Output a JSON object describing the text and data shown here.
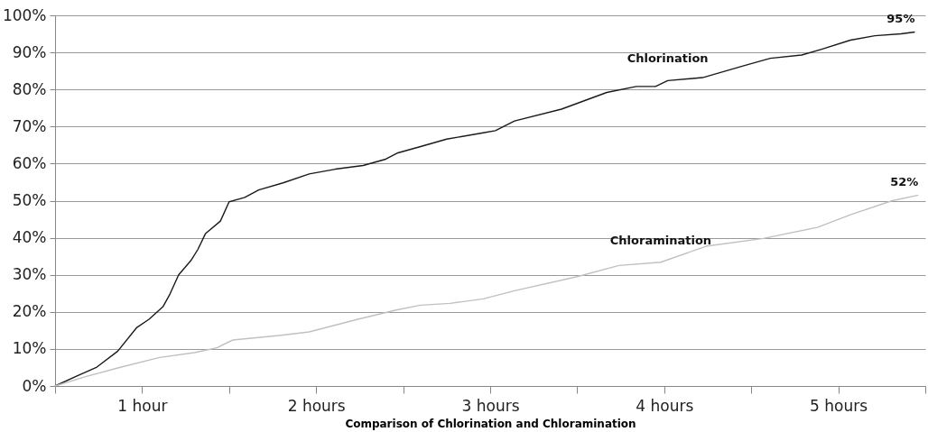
{
  "chart_data": {
    "type": "line",
    "xlabel": "Comparison of Chlorination and Chloramination",
    "xlim": [
      0,
      5
    ],
    "xticks": [
      {
        "value": 0,
        "label": null
      },
      {
        "value": 0.5,
        "label": "1 hour"
      },
      {
        "value": 1,
        "label": null
      },
      {
        "value": 1.5,
        "label": "2 hours"
      },
      {
        "value": 2,
        "label": null
      },
      {
        "value": 2.5,
        "label": "3 hours"
      },
      {
        "value": 3,
        "label": null
      },
      {
        "value": 3.5,
        "label": "4 hours"
      },
      {
        "value": 4,
        "label": null
      },
      {
        "value": 4.5,
        "label": "5 hours"
      },
      {
        "value": 5,
        "label": null
      }
    ],
    "ylim": [
      0,
      100
    ],
    "yticks": [
      {
        "value": 0,
        "label": "0%"
      },
      {
        "value": 10,
        "label": "10%"
      },
      {
        "value": 20,
        "label": "20%"
      },
      {
        "value": 30,
        "label": "30%"
      },
      {
        "value": 40,
        "label": "40%"
      },
      {
        "value": 50,
        "label": "50%"
      },
      {
        "value": 60,
        "label": "60%"
      },
      {
        "value": 70,
        "label": "70%"
      },
      {
        "value": 80,
        "label": "80%"
      },
      {
        "value": 90,
        "label": "90%"
      },
      {
        "value": 100,
        "label": "100%"
      }
    ],
    "grid": "y",
    "legend": false,
    "marker": "none",
    "line_style": "solid",
    "series": [
      {
        "name": "Chlorination",
        "color": "#1a1a1a",
        "x": [
          0,
          0.12,
          0.24,
          0.36,
          0.47,
          0.54,
          0.62,
          0.66,
          0.71,
          0.78,
          0.82,
          0.864,
          0.95,
          1.0,
          1.09,
          1.17,
          1.31,
          1.46,
          1.61,
          1.77,
          1.9,
          1.97,
          2.1,
          2.25,
          2.46,
          2.53,
          2.64,
          2.91,
          3.17,
          3.34,
          3.45,
          3.52,
          3.72,
          3.98,
          4.11,
          4.29,
          4.4,
          4.57,
          4.71,
          4.86,
          4.94
        ],
        "values": [
          0,
          2.6,
          5.1,
          9.4,
          15.8,
          18,
          21.4,
          24.8,
          30,
          33.8,
          36.8,
          41.1,
          44.5,
          49.7,
          50.9,
          52.9,
          54.8,
          57.2,
          58.5,
          59.5,
          61.2,
          62.9,
          64.6,
          66.6,
          68.3,
          68.9,
          71.5,
          74.7,
          79.2,
          80.8,
          80.8,
          82.4,
          83.2,
          86.7,
          88.4,
          89.3,
          90.8,
          93.3,
          94.5,
          95,
          95.5
        ]
      },
      {
        "name": "Chloramination",
        "color": "#c0c0c0",
        "x": [
          0,
          0.18,
          0.38,
          0.6,
          0.8,
          0.93,
          1.02,
          1.3,
          1.46,
          1.74,
          1.96,
          2.1,
          2.27,
          2.46,
          2.64,
          3.0,
          3.24,
          3.48,
          3.74,
          4.07,
          4.38,
          4.57,
          4.81,
          4.96
        ],
        "values": [
          0,
          2.6,
          5.1,
          7.7,
          9,
          10.3,
          12.4,
          13.7,
          14.6,
          18,
          20.5,
          21.8,
          22.3,
          23.5,
          25.7,
          29.5,
          32.5,
          33.4,
          37.7,
          39.8,
          42.8,
          46.2,
          50,
          51.5
        ]
      }
    ],
    "annotations": [
      {
        "text": "95%",
        "x": 4.94,
        "y": 95.5
      },
      {
        "text": "52%",
        "x": 4.96,
        "y": 51.5
      }
    ]
  }
}
